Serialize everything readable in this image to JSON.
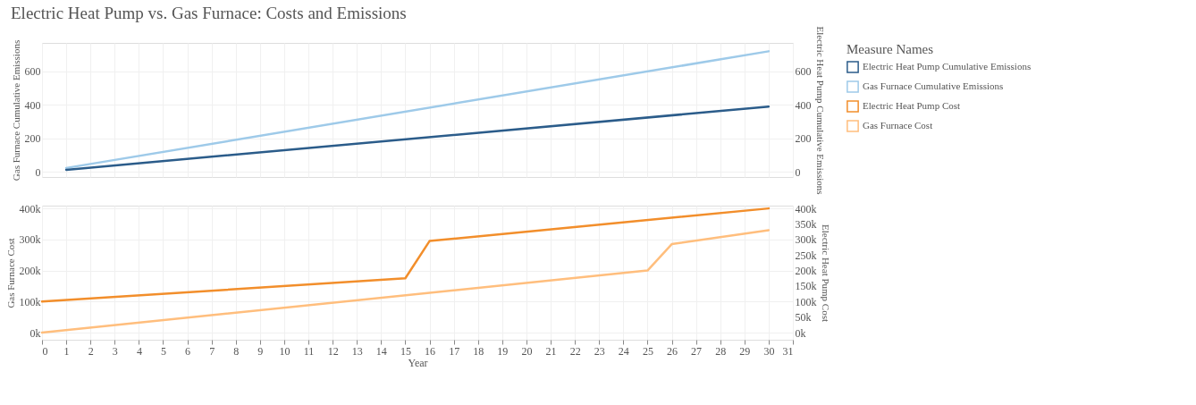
{
  "chart_data": [
    {
      "type": "line",
      "title": "Electric Heat Pump vs. Gas Furnace: Costs and Emissions",
      "ylabel": "Gas Furnace Cumulative Emissions",
      "y2label": "Electric Heat Pump Cumulative Emissions",
      "legend_title": "Measure Names",
      "legend": "right",
      "grid": true,
      "tick_labels": "y",
      "xlim": [
        0,
        31
      ],
      "xticks": [
        0,
        1,
        2,
        3,
        4,
        5,
        6,
        7,
        8,
        9,
        10,
        11,
        12,
        13,
        14,
        15,
        16,
        17,
        18,
        19,
        20,
        21,
        22,
        23,
        24,
        25,
        26,
        27,
        28,
        29,
        30,
        31
      ],
      "ylim": [
        -30,
        770
      ],
      "yticks": [
        0,
        200,
        400,
        600
      ],
      "y2lim": [
        -30,
        770
      ],
      "y2ticks": [
        0,
        200,
        400,
        600
      ],
      "series": [
        {
          "name": "Electric Heat Pump Cumulative Emissions",
          "color": "#2b5c8a",
          "axis": "y2",
          "x": [
            1,
            30
          ],
          "values": [
            13,
            390
          ]
        },
        {
          "name": "Gas Furnace Cumulative Emissions",
          "color": "#9ecae9",
          "x": [
            1,
            30
          ],
          "values": [
            24,
            720
          ]
        }
      ]
    },
    {
      "type": "line",
      "xlabel": "Year",
      "legend": "right",
      "ylabel": "Gas Furnace Cost",
      "y2label": "Electric Heat Pump Cost",
      "grid": true,
      "xlim": [
        0,
        31
      ],
      "xticks": [
        0,
        1,
        2,
        3,
        4,
        5,
        6,
        7,
        8,
        9,
        10,
        11,
        12,
        13,
        14,
        15,
        16,
        17,
        18,
        19,
        20,
        21,
        22,
        23,
        24,
        25,
        26,
        27,
        28,
        29,
        30,
        31
      ],
      "ylim": [
        -23000,
        409000
      ],
      "yticks": [
        {
          "value": 0,
          "label": "0k"
        },
        {
          "value": 100000,
          "label": "100k"
        },
        {
          "value": 200000,
          "label": "200k"
        },
        {
          "value": 300000,
          "label": "300k"
        },
        {
          "value": 400000,
          "label": "400k"
        }
      ],
      "y2lim": [
        -23000,
        409000
      ],
      "y2ticks": [
        {
          "value": 0,
          "label": "0k"
        },
        {
          "value": 50000,
          "label": "50k"
        },
        {
          "value": 100000,
          "label": "100k"
        },
        {
          "value": 150000,
          "label": "150k"
        },
        {
          "value": 200000,
          "label": "200k"
        },
        {
          "value": 250000,
          "label": "250k"
        },
        {
          "value": 300000,
          "label": "300k"
        },
        {
          "value": 350000,
          "label": "350k"
        },
        {
          "value": 400000,
          "label": "400k"
        }
      ],
      "series": [
        {
          "name": "Electric Heat Pump Cost",
          "color": "#f28e2b",
          "axis": "y2",
          "x": [
            0,
            15,
            16,
            30
          ],
          "values": [
            100000,
            175000,
            295000,
            400000
          ]
        },
        {
          "name": "Gas Furnace Cost",
          "color": "#ffbe7d",
          "x": [
            0,
            25,
            26,
            30
          ],
          "values": [
            0,
            200000,
            285000,
            330000
          ]
        }
      ]
    }
  ]
}
